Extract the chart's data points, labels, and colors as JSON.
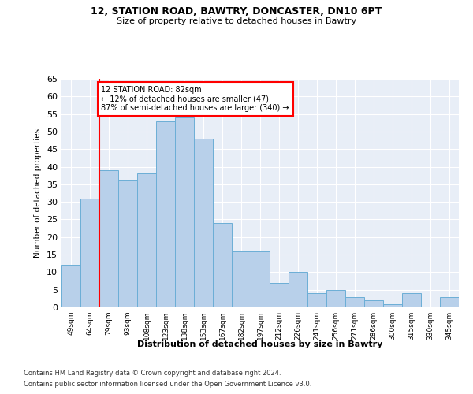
{
  "title1": "12, STATION ROAD, BAWTRY, DONCASTER, DN10 6PT",
  "title2": "Size of property relative to detached houses in Bawtry",
  "xlabel": "Distribution of detached houses by size in Bawtry",
  "ylabel": "Number of detached properties",
  "categories": [
    "49sqm",
    "64sqm",
    "79sqm",
    "93sqm",
    "108sqm",
    "123sqm",
    "138sqm",
    "153sqm",
    "167sqm",
    "182sqm",
    "197sqm",
    "212sqm",
    "226sqm",
    "241sqm",
    "256sqm",
    "271sqm",
    "286sqm",
    "300sqm",
    "315sqm",
    "330sqm",
    "345sqm"
  ],
  "values": [
    12,
    31,
    39,
    36,
    38,
    53,
    54,
    48,
    24,
    16,
    16,
    7,
    10,
    4,
    5,
    3,
    2,
    1,
    4,
    0,
    3
  ],
  "bar_color": "#b8d0ea",
  "bar_edge_color": "#6baed6",
  "annotation_label": "12 STATION ROAD: 82sqm",
  "annotation_line1": "← 12% of detached houses are smaller (47)",
  "annotation_line2": "87% of semi-detached houses are larger (340) →",
  "red_line_index": 2.0,
  "ylim": [
    0,
    65
  ],
  "yticks": [
    0,
    5,
    10,
    15,
    20,
    25,
    30,
    35,
    40,
    45,
    50,
    55,
    60,
    65
  ],
  "footnote1": "Contains HM Land Registry data © Crown copyright and database right 2024.",
  "footnote2": "Contains public sector information licensed under the Open Government Licence v3.0.",
  "background_color": "#e8eef7"
}
